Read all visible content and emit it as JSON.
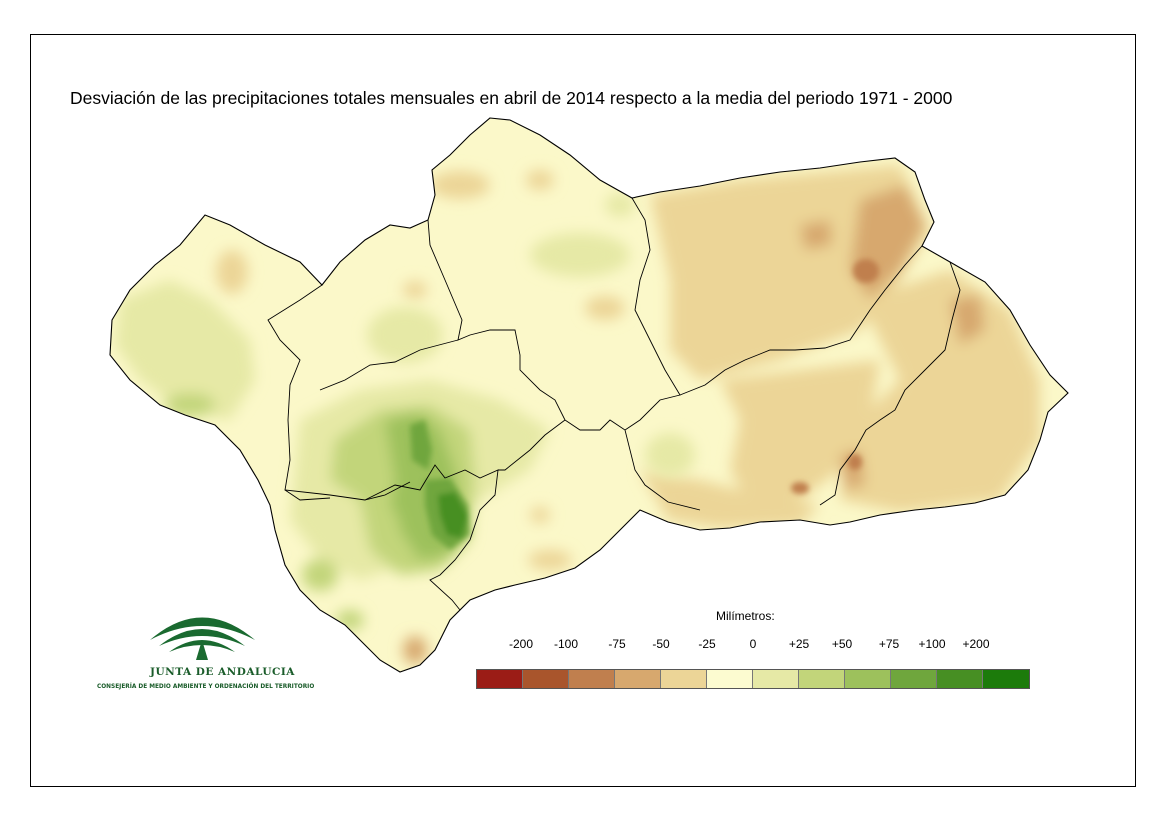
{
  "map": {
    "title": "Desviación de las precipitaciones totales mensuales en abril de 2014 respecto a la media del periodo 1971 - 2000",
    "legend": {
      "unit": "Milímetros:",
      "labels": [
        "-200",
        "-100",
        "-75",
        "-50",
        "-25",
        "0",
        "+25",
        "+50",
        "+75",
        "+100",
        "+200"
      ],
      "colors": [
        "#9b1c16",
        "#a9552c",
        "#c07f4e",
        "#d7a86e",
        "#ecd597",
        "#fcfbd0",
        "#e6e9a6",
        "#c2d57a",
        "#9dc15c",
        "#6fa63d",
        "#478f23",
        "#1c7b0b"
      ]
    },
    "colors": {
      "base": "#fbf8c9",
      "light_green": "#e6e9a6",
      "mid_green": "#c2d57a",
      "green": "#9dc15c",
      "dark_green": "#6fa63d",
      "deep_green": "#478f23",
      "light_brown": "#ecd597",
      "brown": "#d7a86e",
      "dark_brown": "#c07f4e"
    }
  },
  "logo": {
    "name": "JUNTA DE ANDALUCIA",
    "subtitle": "CONSEJERÍA DE MEDIO AMBIENTE Y ORDENACIÓN DEL TERRITORIO",
    "icon": "junta-andalucia-arcs-icon"
  }
}
